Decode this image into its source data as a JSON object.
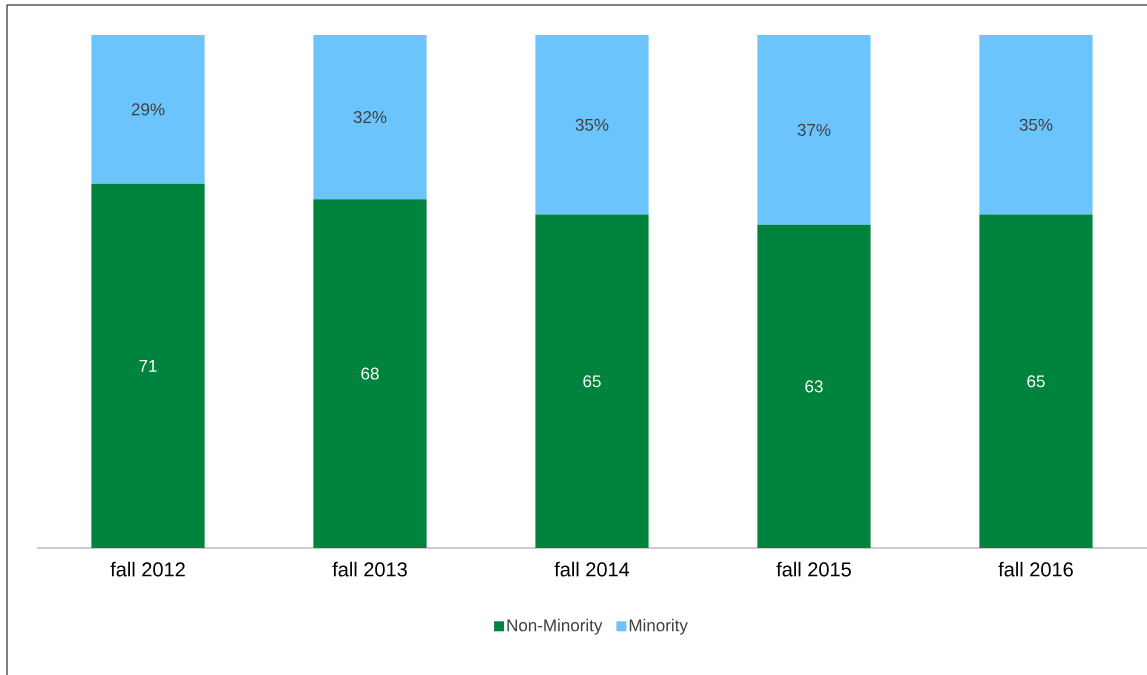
{
  "chart_data": {
    "type": "bar",
    "stacked": true,
    "categories": [
      "fall 2012",
      "fall 2013",
      "fall 2014",
      "fall 2015",
      "fall 2016"
    ],
    "series": [
      {
        "name": "Non-Minority",
        "color": "#00843d",
        "values": [
          71,
          68,
          65,
          63,
          65
        ],
        "value_labels": [
          "71",
          "68",
          "65",
          "63",
          "65"
        ]
      },
      {
        "name": "Minority",
        "color": "#6bc5fc",
        "values": [
          29,
          32,
          35,
          37,
          35
        ],
        "value_labels": [
          "29%",
          "32%",
          "35%",
          "37%",
          "35%"
        ]
      }
    ],
    "ylim": [
      0,
      100
    ],
    "tick_labels": "x",
    "legend": "bottom"
  }
}
